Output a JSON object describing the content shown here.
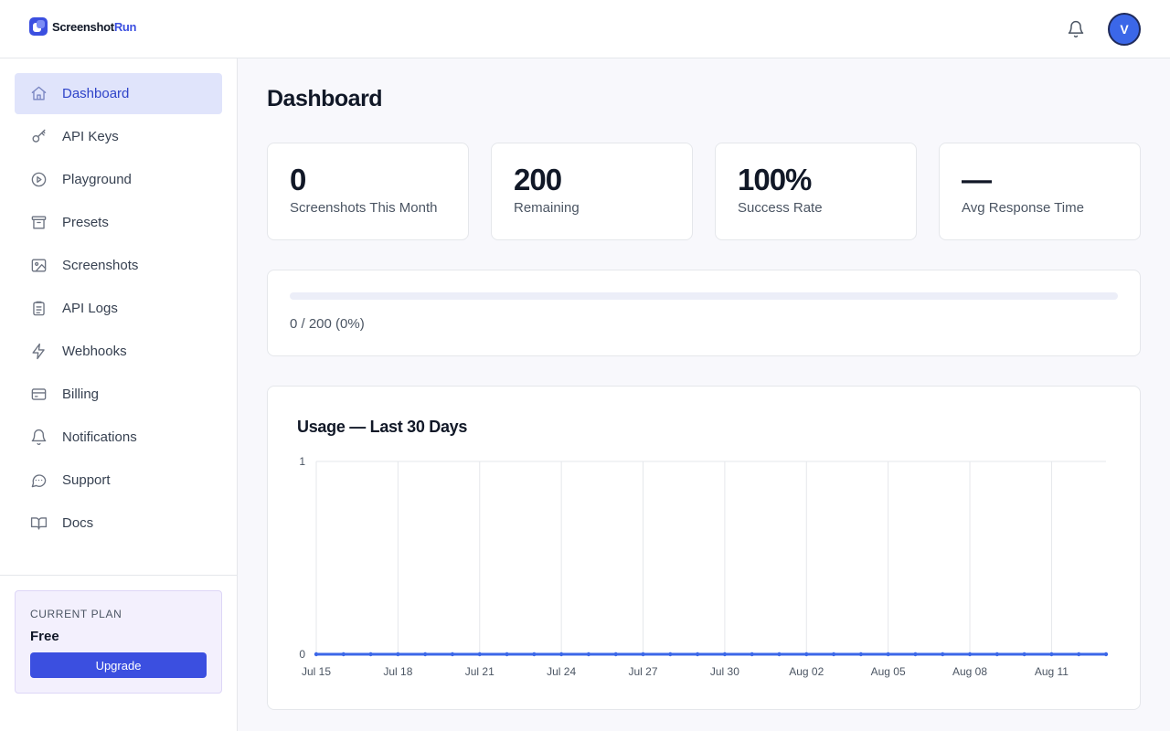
{
  "brand": {
    "name": "Screenshot",
    "accent": "Run"
  },
  "header": {
    "bell_icon": "bell-icon",
    "avatar_initial": "V"
  },
  "sidebar": {
    "items": [
      {
        "label": "Dashboard",
        "icon": "home-icon",
        "active": true
      },
      {
        "label": "API Keys",
        "icon": "key-icon"
      },
      {
        "label": "Playground",
        "icon": "play-circle-icon"
      },
      {
        "label": "Presets",
        "icon": "archive-icon"
      },
      {
        "label": "Screenshots",
        "icon": "image-icon"
      },
      {
        "label": "API Logs",
        "icon": "clipboard-icon"
      },
      {
        "label": "Webhooks",
        "icon": "lightning-icon"
      },
      {
        "label": "Billing",
        "icon": "credit-card-icon"
      },
      {
        "label": "Notifications",
        "icon": "bell-icon"
      },
      {
        "label": "Support",
        "icon": "chat-icon"
      },
      {
        "label": "Docs",
        "icon": "book-icon"
      }
    ],
    "plan": {
      "kicker": "CURRENT PLAN",
      "name": "Free",
      "upgrade_label": "Upgrade"
    }
  },
  "main": {
    "title": "Dashboard",
    "stats": [
      {
        "value": "0",
        "label": "Screenshots This Month"
      },
      {
        "value": "200",
        "label": "Remaining"
      },
      {
        "value": "100%",
        "label": "Success Rate"
      },
      {
        "value": "—",
        "label": "Avg Response Time"
      }
    ],
    "usage": {
      "used": 0,
      "limit": 200,
      "progress_fraction": 0,
      "text": "0 / 200 (0%)"
    },
    "chart_title": "Usage — Last 30 Days"
  },
  "colors": {
    "accent": "#3b4fe0",
    "line": "#3b67e8",
    "grid": "#e5e7eb"
  },
  "chart_data": {
    "type": "line",
    "title": "Usage — Last 30 Days",
    "xlabel": "",
    "ylabel": "",
    "x": [
      "Jul 15",
      "Jul 16",
      "Jul 17",
      "Jul 18",
      "Jul 19",
      "Jul 20",
      "Jul 21",
      "Jul 22",
      "Jul 23",
      "Jul 24",
      "Jul 25",
      "Jul 26",
      "Jul 27",
      "Jul 28",
      "Jul 29",
      "Jul 30",
      "Jul 31",
      "Aug 01",
      "Aug 02",
      "Aug 03",
      "Aug 04",
      "Aug 05",
      "Aug 06",
      "Aug 07",
      "Aug 08",
      "Aug 09",
      "Aug 10",
      "Aug 11",
      "Aug 12",
      "Aug 13"
    ],
    "x_tick_labels": [
      "Jul 15",
      "Jul 18",
      "Jul 21",
      "Jul 24",
      "Jul 27",
      "Jul 30",
      "Aug 02",
      "Aug 05",
      "Aug 08",
      "Aug 11"
    ],
    "y_tick_labels": [
      "0",
      "1"
    ],
    "ylim": [
      0,
      1
    ],
    "grid": true,
    "series": [
      {
        "values": [
          0,
          0,
          0,
          0,
          0,
          0,
          0,
          0,
          0,
          0,
          0,
          0,
          0,
          0,
          0,
          0,
          0,
          0,
          0,
          0,
          0,
          0,
          0,
          0,
          0,
          0,
          0,
          0,
          0,
          0
        ]
      }
    ]
  }
}
